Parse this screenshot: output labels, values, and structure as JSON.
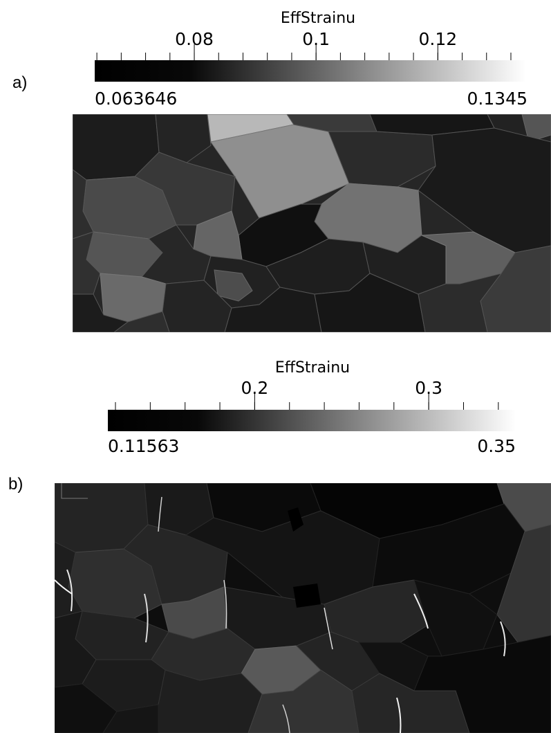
{
  "panels": [
    {
      "label": "a)",
      "colorbar": {
        "title": "EffStrainu",
        "ticks": [
          {
            "value": 0.08,
            "label": "0.08"
          },
          {
            "value": 0.1,
            "label": "0.1"
          },
          {
            "value": 0.12,
            "label": "0.12"
          }
        ],
        "min_label": "0.063646",
        "max_label": "0.1345",
        "range": [
          0.063646,
          0.1345
        ],
        "colormap": [
          "#000000",
          "#ffffff"
        ]
      }
    },
    {
      "label": "b)",
      "colorbar": {
        "title": "EffStrainu",
        "ticks": [
          {
            "value": 0.2,
            "label": "0.2"
          },
          {
            "value": 0.3,
            "label": "0.3"
          }
        ],
        "min_label": "0.11563",
        "max_label": "0.35",
        "range": [
          0.11563,
          0.35
        ],
        "colormap": [
          "#000000",
          "#ffffff"
        ]
      }
    }
  ]
}
